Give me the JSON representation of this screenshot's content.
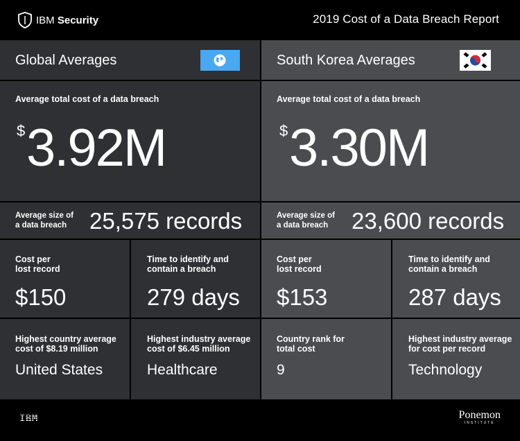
{
  "header": {
    "brand_prefix": "IBM",
    "brand_name": "Security",
    "report_title": "2019 Cost of a Data Breach Report"
  },
  "global": {
    "title": "Global Averages",
    "flag_icon": "globe-icon",
    "avg_cost_label": "Average total cost of a data breach",
    "currency": "$",
    "avg_cost_value": "3.92M",
    "avg_size_label_line1": "Average size of",
    "avg_size_label_line2": "a data breach",
    "avg_size_value": "25,575 records",
    "cost_per_record_label_line1": "Cost per",
    "cost_per_record_label_line2": "lost record",
    "cost_per_record_value": "$150",
    "time_label_line1": "Time to identify and",
    "time_label_line2": "contain a breach",
    "time_value": "279 days",
    "highest_country_label_line1": "Highest country average",
    "highest_country_label_line2": "cost of $8.19 million",
    "highest_country_value": "United States",
    "highest_industry_label_line1": "Highest industry average",
    "highest_industry_label_line2": "cost of $6.45 million",
    "highest_industry_value": "Healthcare"
  },
  "korea": {
    "title": "South Korea Averages",
    "flag_icon": "south-korea-flag-icon",
    "avg_cost_label": "Average total cost of a data breach",
    "currency": "$",
    "avg_cost_value": "3.30M",
    "avg_size_label_line1": "Average size of",
    "avg_size_label_line2": "a data breach",
    "avg_size_value": "23,600 records",
    "cost_per_record_label_line1": "Cost per",
    "cost_per_record_label_line2": "lost record",
    "cost_per_record_value": "$153",
    "time_label_line1": "Time to identify and",
    "time_label_line2": "contain a breach",
    "time_value": "287 days",
    "rank_label_line1": "Country rank for",
    "rank_label_line2": "total cost",
    "rank_value": "9",
    "highest_industry_label_line1": "Highest industry average",
    "highest_industry_label_line2": "for cost per record",
    "highest_industry_value": "Technology"
  },
  "footer": {
    "ibm_logo": "IBM",
    "ponemon_name": "Ponemon",
    "ponemon_sub": "INSTITUTE"
  },
  "colors": {
    "background": "#000000",
    "global_panel": "#2e3033",
    "korea_panel": "#4a4c50",
    "globe_flag": "#4aa8f0"
  }
}
